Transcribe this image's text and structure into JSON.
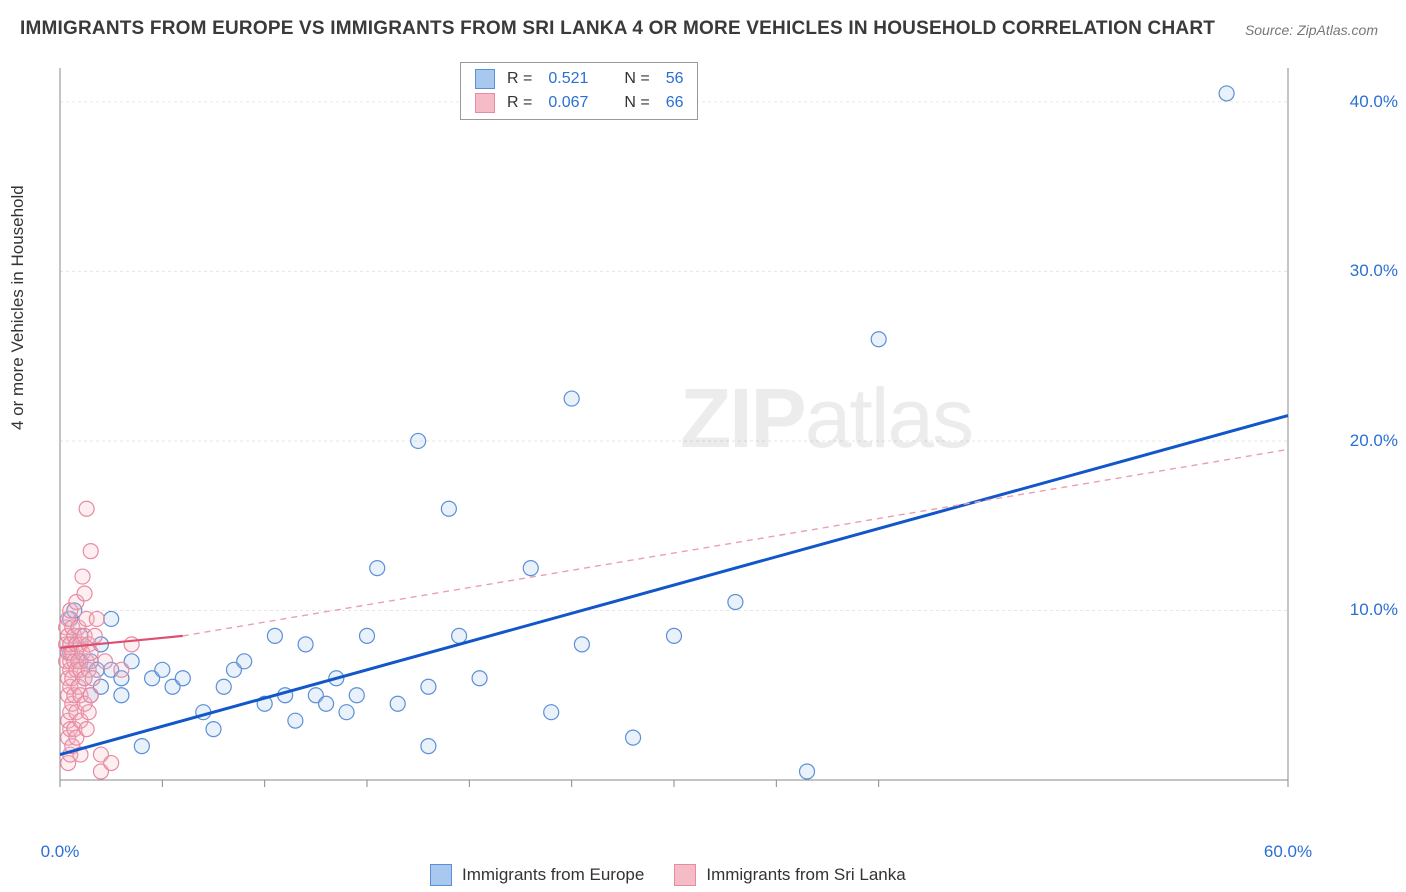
{
  "title": "IMMIGRANTS FROM EUROPE VS IMMIGRANTS FROM SRI LANKA 4 OR MORE VEHICLES IN HOUSEHOLD CORRELATION CHART",
  "source": "Source: ZipAtlas.com",
  "ylabel": "4 or more Vehicles in Household",
  "watermark": "ZIPatlas",
  "chart": {
    "type": "scatter",
    "background_color": "#ffffff",
    "grid_color": "#e6e6e6",
    "axis_color": "#888888",
    "xlim": [
      0,
      60
    ],
    "ylim": [
      0,
      42
    ],
    "xticks": [
      0,
      5,
      10,
      15,
      20,
      25,
      30,
      35,
      40,
      60
    ],
    "xtick_labels_shown": {
      "0": "0.0%",
      "60": "60.0%"
    },
    "yticks": [
      10,
      20,
      30,
      40
    ],
    "ytick_labels": {
      "10": "10.0%",
      "20": "20.0%",
      "30": "30.0%",
      "40": "40.0%"
    },
    "marker_radius": 7.5,
    "marker_stroke_width": 1.2,
    "marker_fill_opacity": 0.25,
    "series": [
      {
        "name": "Immigrants from Europe",
        "color_fill": "#a9c8f0",
        "color_stroke": "#5b8fd6",
        "R": 0.521,
        "N": 56,
        "trend": {
          "x1": 0,
          "y1": 1.5,
          "x2": 60,
          "y2": 21.5,
          "stroke": "#1257c9",
          "width": 3,
          "dash": "none"
        },
        "points": [
          [
            0.5,
            7.5
          ],
          [
            0.5,
            8.0
          ],
          [
            0.5,
            9.5
          ],
          [
            0.7,
            10.0
          ],
          [
            1.0,
            7.0
          ],
          [
            1.0,
            8.5
          ],
          [
            1.2,
            6.0
          ],
          [
            1.5,
            5.0
          ],
          [
            1.5,
            7.0
          ],
          [
            1.8,
            6.5
          ],
          [
            2.0,
            5.5
          ],
          [
            2.0,
            8.0
          ],
          [
            2.5,
            6.5
          ],
          [
            2.5,
            9.5
          ],
          [
            3.0,
            5.0
          ],
          [
            3.0,
            6.0
          ],
          [
            3.5,
            7.0
          ],
          [
            4.0,
            2.0
          ],
          [
            4.5,
            6.0
          ],
          [
            5.0,
            6.5
          ],
          [
            5.5,
            5.5
          ],
          [
            6.0,
            6.0
          ],
          [
            7.0,
            4.0
          ],
          [
            7.5,
            3.0
          ],
          [
            8.0,
            5.5
          ],
          [
            8.5,
            6.5
          ],
          [
            9.0,
            7.0
          ],
          [
            10.0,
            4.5
          ],
          [
            10.5,
            8.5
          ],
          [
            11.0,
            5.0
          ],
          [
            11.5,
            3.5
          ],
          [
            12.0,
            8.0
          ],
          [
            12.5,
            5.0
          ],
          [
            13.0,
            4.5
          ],
          [
            13.5,
            6.0
          ],
          [
            14.0,
            4.0
          ],
          [
            14.5,
            5.0
          ],
          [
            15.0,
            8.5
          ],
          [
            15.5,
            12.5
          ],
          [
            16.5,
            4.5
          ],
          [
            17.5,
            20.0
          ],
          [
            18.0,
            5.5
          ],
          [
            18.0,
            2.0
          ],
          [
            19.0,
            16.0
          ],
          [
            19.5,
            8.5
          ],
          [
            20.5,
            6.0
          ],
          [
            23.0,
            12.5
          ],
          [
            24.0,
            4.0
          ],
          [
            25.0,
            22.5
          ],
          [
            25.5,
            8.0
          ],
          [
            28.0,
            2.5
          ],
          [
            30.0,
            8.5
          ],
          [
            33.0,
            10.5
          ],
          [
            36.5,
            0.5
          ],
          [
            40.0,
            26.0
          ],
          [
            57.0,
            40.5
          ]
        ]
      },
      {
        "name": "Immigrants from Sri Lanka",
        "color_fill": "#f5bcc8",
        "color_stroke": "#e88aa0",
        "R": 0.067,
        "N": 66,
        "trend_solid": {
          "x1": 0,
          "y1": 7.8,
          "x2": 6,
          "y2": 8.5,
          "stroke": "#de4e6f",
          "width": 2.2
        },
        "trend_dashed": {
          "x1": 6,
          "y1": 8.5,
          "x2": 60,
          "y2": 19.5,
          "stroke": "#e9a0b2",
          "width": 1.4,
          "dash": "6 5"
        },
        "points": [
          [
            0.3,
            7.0
          ],
          [
            0.3,
            8.0
          ],
          [
            0.3,
            9.0
          ],
          [
            0.4,
            1.0
          ],
          [
            0.4,
            2.5
          ],
          [
            0.4,
            3.5
          ],
          [
            0.4,
            5.0
          ],
          [
            0.4,
            6.0
          ],
          [
            0.4,
            7.5
          ],
          [
            0.4,
            8.5
          ],
          [
            0.4,
            9.5
          ],
          [
            0.5,
            1.5
          ],
          [
            0.5,
            3.0
          ],
          [
            0.5,
            4.0
          ],
          [
            0.5,
            5.5
          ],
          [
            0.5,
            6.5
          ],
          [
            0.5,
            7.0
          ],
          [
            0.5,
            8.0
          ],
          [
            0.5,
            10.0
          ],
          [
            0.6,
            2.0
          ],
          [
            0.6,
            4.5
          ],
          [
            0.6,
            6.0
          ],
          [
            0.6,
            7.5
          ],
          [
            0.6,
            9.0
          ],
          [
            0.7,
            3.0
          ],
          [
            0.7,
            5.0
          ],
          [
            0.7,
            7.0
          ],
          [
            0.7,
            8.5
          ],
          [
            0.8,
            2.5
          ],
          [
            0.8,
            4.0
          ],
          [
            0.8,
            6.5
          ],
          [
            0.8,
            8.0
          ],
          [
            0.8,
            10.5
          ],
          [
            0.9,
            5.5
          ],
          [
            0.9,
            7.0
          ],
          [
            0.9,
            9.0
          ],
          [
            1.0,
            3.5
          ],
          [
            1.0,
            5.0
          ],
          [
            1.0,
            6.5
          ],
          [
            1.0,
            8.0
          ],
          [
            1.0,
            1.5
          ],
          [
            1.1,
            7.5
          ],
          [
            1.1,
            12.0
          ],
          [
            1.2,
            4.5
          ],
          [
            1.2,
            6.0
          ],
          [
            1.2,
            8.5
          ],
          [
            1.2,
            11.0
          ],
          [
            1.3,
            3.0
          ],
          [
            1.3,
            7.0
          ],
          [
            1.3,
            9.5
          ],
          [
            1.3,
            16.0
          ],
          [
            1.4,
            4.0
          ],
          [
            1.4,
            6.5
          ],
          [
            1.4,
            8.0
          ],
          [
            1.5,
            5.0
          ],
          [
            1.5,
            7.5
          ],
          [
            1.5,
            13.5
          ],
          [
            1.6,
            6.0
          ],
          [
            1.7,
            8.5
          ],
          [
            1.8,
            9.5
          ],
          [
            2.0,
            0.5
          ],
          [
            2.0,
            1.5
          ],
          [
            2.2,
            7.0
          ],
          [
            2.5,
            1.0
          ],
          [
            3.0,
            6.5
          ],
          [
            3.5,
            8.0
          ]
        ]
      }
    ]
  },
  "legend_top": [
    {
      "swatch_fill": "#a9c8f0",
      "swatch_stroke": "#5b8fd6",
      "R": "0.521",
      "N": "56"
    },
    {
      "swatch_fill": "#f5bcc8",
      "swatch_stroke": "#e88aa0",
      "R": "0.067",
      "N": "66"
    }
  ],
  "legend_bottom": [
    {
      "swatch_fill": "#a9c8f0",
      "swatch_stroke": "#5b8fd6",
      "label": "Immigrants from Europe"
    },
    {
      "swatch_fill": "#f5bcc8",
      "swatch_stroke": "#e88aa0",
      "label": "Immigrants from Sri Lanka"
    }
  ]
}
